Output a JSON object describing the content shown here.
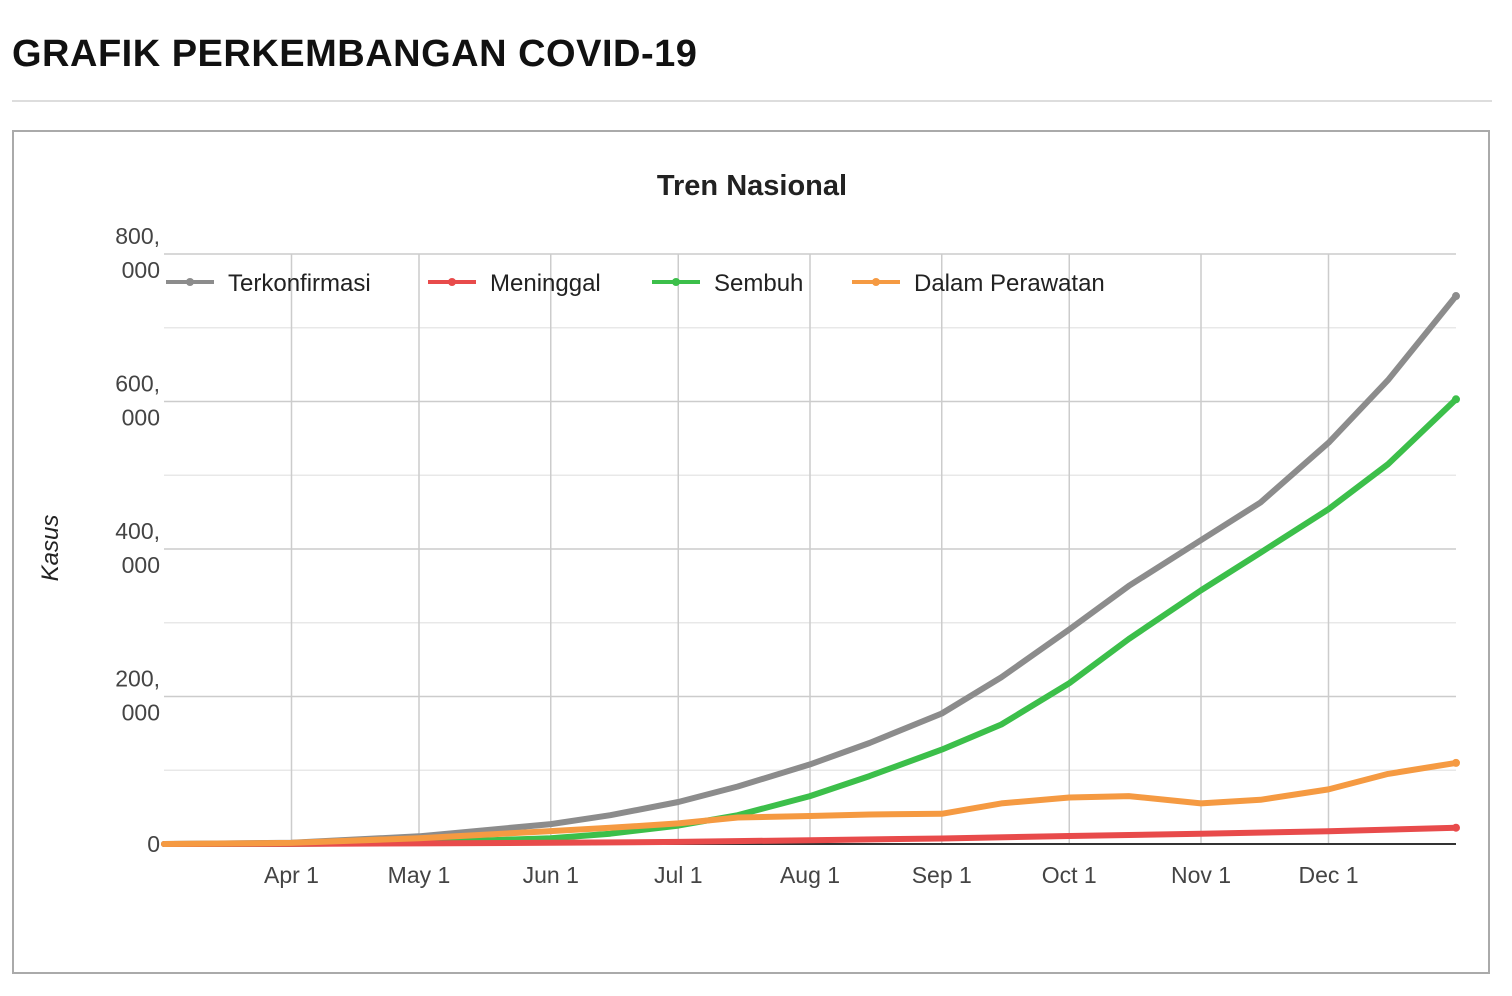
{
  "page": {
    "title": "GRAFIK PERKEMBANGAN COVID-19"
  },
  "chart_data": {
    "type": "line",
    "title": "Tren Nasional",
    "xlabel": "",
    "ylabel": "Kasus",
    "x_axis": {
      "type": "date",
      "range": [
        "2020-03-02",
        "2020-12-31"
      ],
      "ticks": [
        "2020-04-01",
        "2020-05-01",
        "2020-06-01",
        "2020-07-01",
        "2020-08-01",
        "2020-09-01",
        "2020-10-01",
        "2020-11-01",
        "2020-12-01"
      ],
      "tick_labels": [
        "Apr 1",
        "May 1",
        "Jun 1",
        "Jul 1",
        "Aug 1",
        "Sep 1",
        "Oct 1",
        "Nov 1",
        "Dec 1"
      ]
    },
    "y_axis": {
      "ylim": [
        0,
        800000
      ],
      "major_ticks": [
        0,
        200000,
        400000,
        600000,
        800000
      ],
      "minor_ticks": [
        100000,
        300000,
        500000,
        700000
      ],
      "tick_labels": [
        [
          "0"
        ],
        [
          "200,",
          "000"
        ],
        [
          "400,",
          "000"
        ],
        [
          "600,",
          "000"
        ],
        [
          "800,",
          "000"
        ]
      ]
    },
    "grid": true,
    "legend_position": "top",
    "series": [
      {
        "name": "Terkonfirmasi",
        "color": "#8c8c8c",
        "x": [
          "2020-03-02",
          "2020-04-01",
          "2020-05-01",
          "2020-06-01",
          "2020-06-15",
          "2020-07-01",
          "2020-07-15",
          "2020-08-01",
          "2020-08-15",
          "2020-09-01",
          "2020-09-15",
          "2020-10-01",
          "2020-10-15",
          "2020-11-01",
          "2020-11-15",
          "2020-12-01",
          "2020-12-15",
          "2020-12-31"
        ],
        "values": [
          2,
          1700,
          10500,
          27000,
          39000,
          57000,
          78000,
          108000,
          137000,
          177000,
          226000,
          291000,
          350000,
          412000,
          463000,
          544000,
          629000,
          743000
        ]
      },
      {
        "name": "Meninggal",
        "color": "#e84b4b",
        "x": [
          "2020-03-02",
          "2020-04-01",
          "2020-05-01",
          "2020-06-01",
          "2020-07-01",
          "2020-08-01",
          "2020-09-01",
          "2020-10-01",
          "2020-11-01",
          "2020-12-01",
          "2020-12-31"
        ],
        "values": [
          0,
          150,
          800,
          1600,
          2900,
          5200,
          7400,
          10900,
          14000,
          17200,
          22100
        ]
      },
      {
        "name": "Sembuh",
        "color": "#3cbf4a",
        "x": [
          "2020-03-02",
          "2020-04-01",
          "2020-05-01",
          "2020-06-01",
          "2020-06-15",
          "2020-07-01",
          "2020-07-15",
          "2020-08-01",
          "2020-08-15",
          "2020-09-01",
          "2020-09-15",
          "2020-10-01",
          "2020-10-15",
          "2020-11-01",
          "2020-11-15",
          "2020-12-01",
          "2020-12-15",
          "2020-12-31"
        ],
        "values": [
          0,
          100,
          1900,
          7900,
          14000,
          25000,
          39000,
          65000,
          92000,
          128000,
          162000,
          218000,
          278000,
          344000,
          395000,
          454000,
          515000,
          603000
        ]
      },
      {
        "name": "Dalam Perawatan",
        "color": "#f59a42",
        "x": [
          "2020-03-02",
          "2020-04-01",
          "2020-05-01",
          "2020-06-01",
          "2020-06-15",
          "2020-07-01",
          "2020-07-15",
          "2020-08-01",
          "2020-08-15",
          "2020-09-01",
          "2020-09-15",
          "2020-10-01",
          "2020-10-15",
          "2020-11-01",
          "2020-11-15",
          "2020-12-01",
          "2020-12-15",
          "2020-12-31"
        ],
        "values": [
          2,
          1450,
          7800,
          17500,
          22000,
          28000,
          36000,
          38000,
          40000,
          41000,
          55000,
          63000,
          65000,
          55000,
          60000,
          74000,
          95000,
          110000
        ]
      }
    ]
  }
}
